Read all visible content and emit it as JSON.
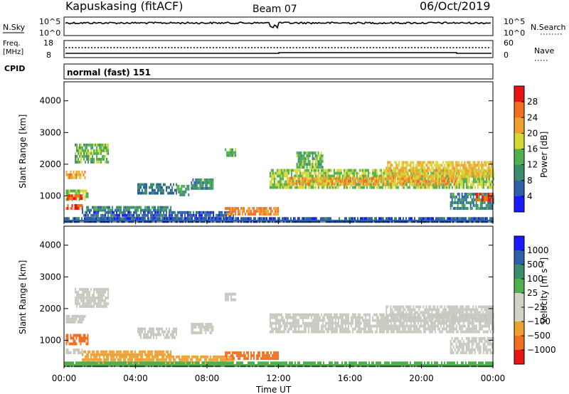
{
  "header": {
    "station": "Kapuskasing (fitACF)",
    "beam": "Beam 07",
    "date": "06/Oct/2019"
  },
  "top_panels": {
    "nsky_label": "N.Sky",
    "nsky_top": "10^5",
    "nsky_bottom": "10^0",
    "nsearch_label": "N.Search",
    "nsearch_top": "10^5",
    "nsearch_bottom": "10^0",
    "freq_label": "Freq.",
    "freq_unit": "[MHz]",
    "freq_top": "18",
    "freq_bottom": "8",
    "nave_label": "Nave",
    "nave_top": "60",
    "nave_bottom": "0",
    "cpid_label": "CPID",
    "cpid_text": "normal (fast) 151"
  },
  "colors": {
    "power": [
      "#1a1aff",
      "#2e5faa",
      "#3c8d6e",
      "#4fb04f",
      "#d7d736",
      "#f0a030",
      "#f07022",
      "#e81414"
    ],
    "velocity": [
      "#e81414",
      "#f07022",
      "#f0a030",
      "#d2d2c8",
      "#d2d2c8",
      "#4fb04f",
      "#3c8d6e",
      "#2e5faa",
      "#1a1aff"
    ],
    "ground_scatter": "#c8c8c0"
  },
  "chart_data": [
    {
      "type": "heatmap",
      "name": "power",
      "xlabel": "",
      "ylabel": "Slant Range [km]",
      "xlim": [
        0,
        24
      ],
      "ylim": [
        180,
        4600
      ],
      "yticks": [
        "1000",
        "2000",
        "3000",
        "4000"
      ],
      "colorbar_label": "Power [dB]",
      "colorbar_ticks": [
        "4",
        "8",
        "12",
        "16",
        "20",
        "24",
        "28"
      ],
      "regions": [
        {
          "t0": 0.1,
          "t1": 1.2,
          "r0": 1550,
          "r1": 1800,
          "v": 22
        },
        {
          "t0": 0.6,
          "t1": 2.5,
          "r0": 2100,
          "r1": 2650,
          "v": 14
        },
        {
          "t0": 0.1,
          "t1": 1.3,
          "r0": 850,
          "r1": 1200,
          "v": 16
        },
        {
          "t0": 0.1,
          "t1": 1.0,
          "r0": 900,
          "r1": 1050,
          "v": 28
        },
        {
          "t0": 0.1,
          "t1": 1.0,
          "r0": 580,
          "r1": 740,
          "v": 28
        },
        {
          "t0": 1.0,
          "t1": 6.0,
          "r0": 560,
          "r1": 680,
          "v": 10
        },
        {
          "t0": 4.1,
          "t1": 6.3,
          "r0": 1050,
          "r1": 1400,
          "v": 8
        },
        {
          "t0": 6.3,
          "t1": 7.0,
          "r0": 1000,
          "r1": 1350,
          "v": 12
        },
        {
          "t0": 7.1,
          "t1": 8.3,
          "r0": 1200,
          "r1": 1550,
          "v": 10
        },
        {
          "t0": 9.0,
          "t1": 9.6,
          "r0": 2300,
          "r1": 2500,
          "v": 14
        },
        {
          "t0": 1.0,
          "t1": 9.5,
          "r0": 300,
          "r1": 520,
          "v": 6
        },
        {
          "t0": 9.0,
          "t1": 12.0,
          "r0": 420,
          "r1": 650,
          "v": 24
        },
        {
          "t0": 11.5,
          "t1": 24.0,
          "r0": 1250,
          "r1": 1850,
          "v": 16
        },
        {
          "t0": 12.5,
          "t1": 22.0,
          "r0": 1350,
          "r1": 1600,
          "v": 22
        },
        {
          "t0": 13.0,
          "t1": 14.5,
          "r0": 1900,
          "r1": 2400,
          "v": 14
        },
        {
          "t0": 18.0,
          "t1": 24.0,
          "r0": 1600,
          "r1": 2100,
          "v": 20
        },
        {
          "t0": 21.6,
          "t1": 24.0,
          "r0": 650,
          "r1": 1100,
          "v": 10
        },
        {
          "t0": 23.0,
          "t1": 24.0,
          "r0": 850,
          "r1": 1100,
          "v": 28
        },
        {
          "t0": 0.0,
          "t1": 24.0,
          "r0": 190,
          "r1": 330,
          "v": 6
        }
      ]
    },
    {
      "type": "heatmap",
      "name": "velocity",
      "xlabel": "Time UT",
      "ylabel": "Slant Range [km]",
      "xlim": [
        0,
        24
      ],
      "ylim": [
        180,
        4600
      ],
      "xticks": [
        "00:00",
        "04:00",
        "08:00",
        "12:00",
        "16:00",
        "20:00",
        "00:00"
      ],
      "yticks": [
        "1000",
        "2000",
        "3000",
        "4000"
      ],
      "colorbar_label": "Velocity [m s⁻¹]",
      "colorbar_ticks": [
        "1000",
        "500",
        "100",
        "25",
        "−25",
        "−100",
        "−500",
        "−1000"
      ],
      "regions": [
        {
          "t0": 0.1,
          "t1": 1.2,
          "r0": 1550,
          "r1": 1800,
          "v": 0
        },
        {
          "t0": 0.6,
          "t1": 2.5,
          "r0": 2100,
          "r1": 2650,
          "v": 0
        },
        {
          "t0": 0.1,
          "t1": 1.3,
          "r0": 850,
          "r1": 1200,
          "v": -120
        },
        {
          "t0": 0.1,
          "t1": 1.0,
          "r0": 580,
          "r1": 740,
          "v": 0
        },
        {
          "t0": 1.0,
          "t1": 6.0,
          "r0": 560,
          "r1": 680,
          "v": -80
        },
        {
          "t0": 4.1,
          "t1": 6.3,
          "r0": 1050,
          "r1": 1400,
          "v": 0
        },
        {
          "t0": 7.1,
          "t1": 8.3,
          "r0": 1200,
          "r1": 1550,
          "v": 0
        },
        {
          "t0": 9.0,
          "t1": 9.6,
          "r0": 2300,
          "r1": 2500,
          "v": 0
        },
        {
          "t0": 1.0,
          "t1": 9.5,
          "r0": 300,
          "r1": 520,
          "v": -60
        },
        {
          "t0": 9.0,
          "t1": 12.0,
          "r0": 420,
          "r1": 650,
          "v": -200
        },
        {
          "t0": 11.5,
          "t1": 24.0,
          "r0": 1250,
          "r1": 1850,
          "v": 0
        },
        {
          "t0": 18.0,
          "t1": 24.0,
          "r0": 1600,
          "r1": 2100,
          "v": 0
        },
        {
          "t0": 21.6,
          "t1": 24.0,
          "r0": 650,
          "r1": 1100,
          "v": 0
        },
        {
          "t0": 0.0,
          "t1": 24.0,
          "r0": 190,
          "r1": 330,
          "v": 30
        }
      ]
    }
  ]
}
